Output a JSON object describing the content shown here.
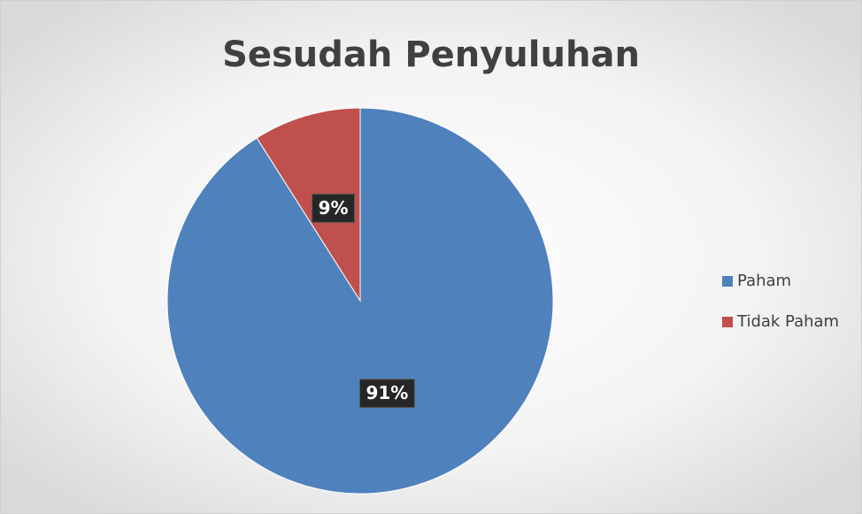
{
  "chart_data": {
    "type": "pie",
    "title": "Sesudah Penyuluhan",
    "categories": [
      "Paham",
      "Tidak Paham"
    ],
    "values": [
      91,
      9
    ],
    "value_labels": [
      "91%",
      "9%"
    ],
    "colors": [
      "#4f81bd",
      "#c0504d"
    ],
    "legend": "right"
  }
}
